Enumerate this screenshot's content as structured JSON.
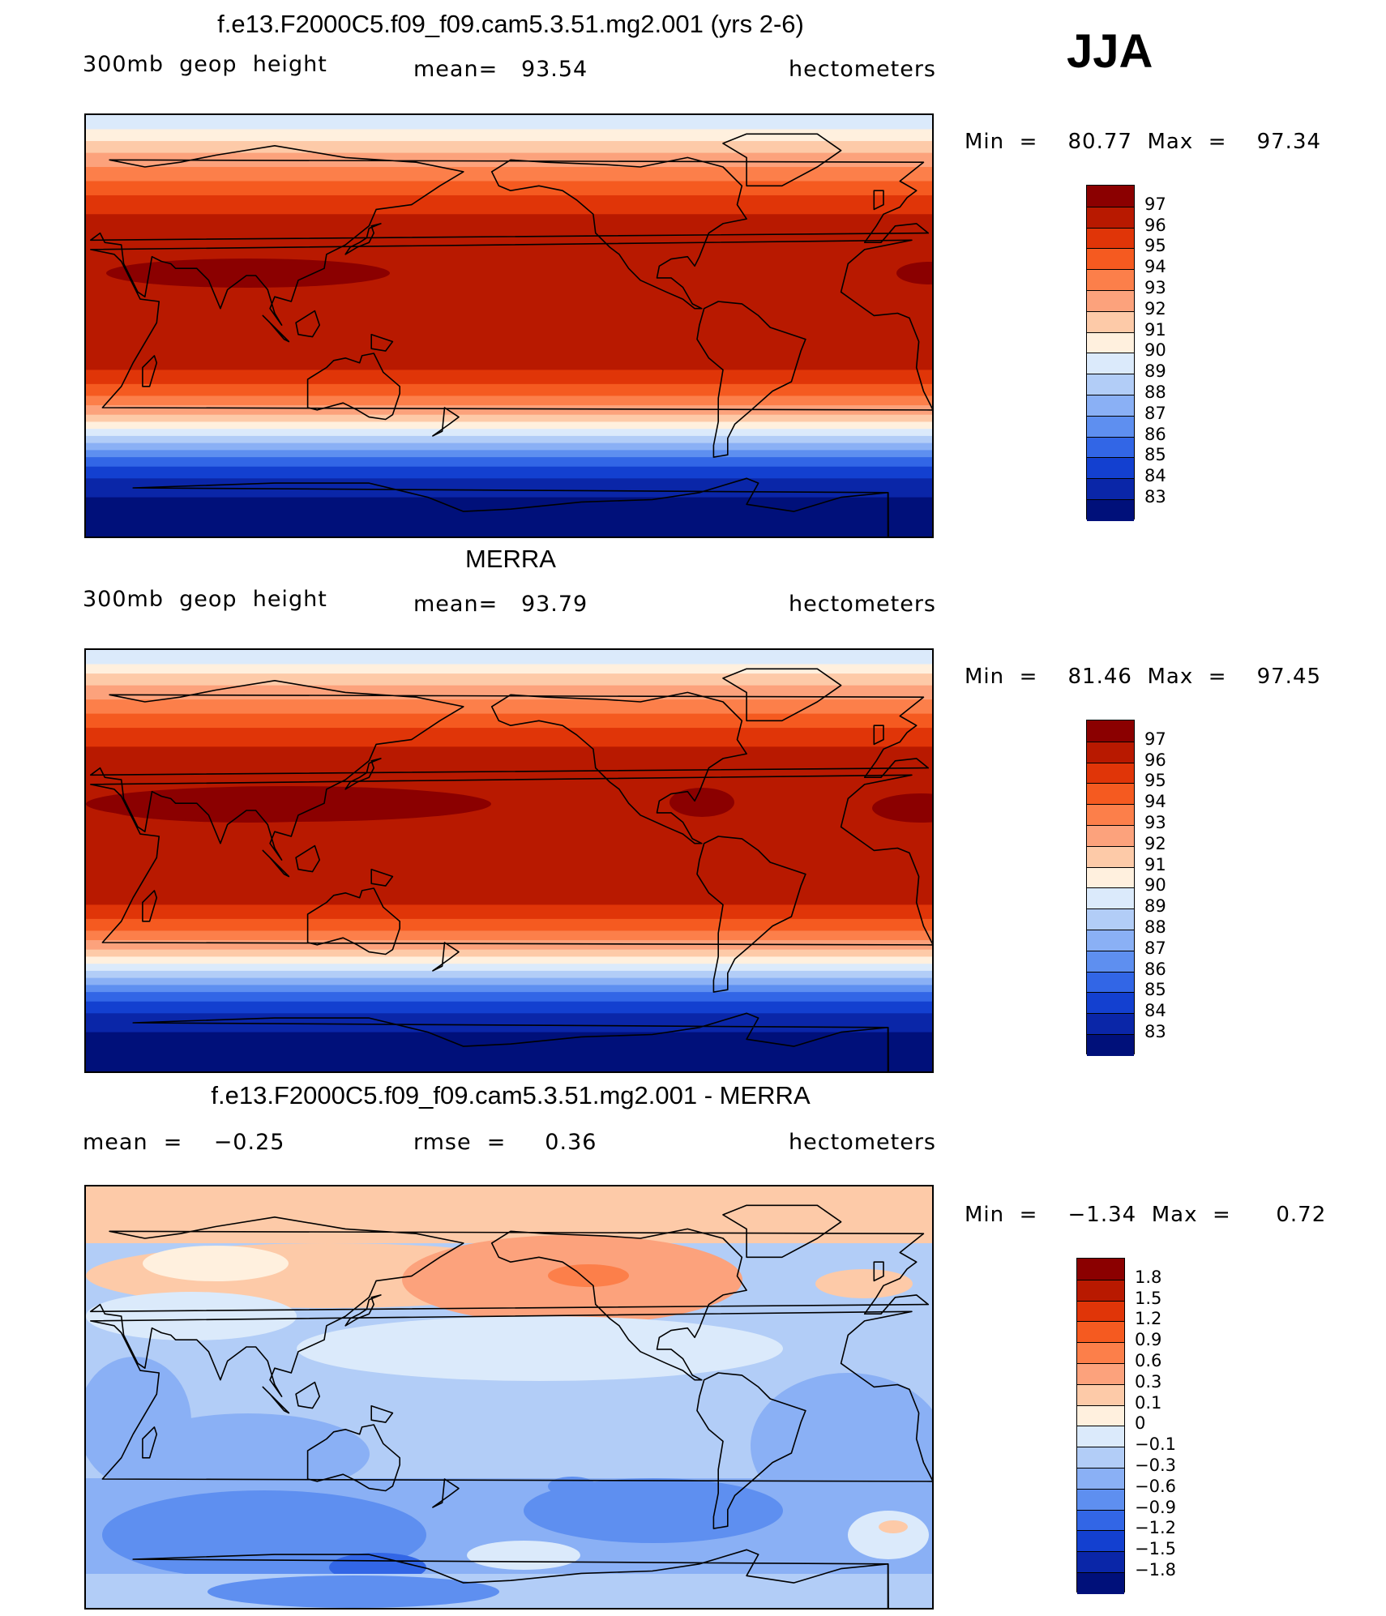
{
  "season": "JJA",
  "panels": [
    {
      "title": "f.e13.F2000C5.f09_f09.cam5.3.51.mg2.001 (yrs 2-6)",
      "left_label": "300mb  geop  height",
      "mid_label": "mean=   93.54",
      "right_label": "hectometers",
      "minmax": "Min  =    80.77  Max  =    97.34",
      "kind": "abs_model",
      "colorbar": {
        "levels": [
          "97",
          "96",
          "95",
          "94",
          "93",
          "92",
          "91",
          "90",
          "89",
          "88",
          "87",
          "86",
          "85",
          "84",
          "83"
        ],
        "colors": [
          "#8b0000",
          "#b81900",
          "#e03508",
          "#f55a20",
          "#fc7f4a",
          "#fca27c",
          "#fdcaa8",
          "#fff0de",
          "#dbeafb",
          "#b2cdf7",
          "#8ab0f5",
          "#5e8ff0",
          "#3266e6",
          "#1340d0",
          "#0a26a8",
          "#00107a"
        ]
      }
    },
    {
      "title": "MERRA",
      "left_label": "300mb  geop  height",
      "mid_label": "mean=   93.79",
      "right_label": "hectometers",
      "minmax": "Min  =    81.46  Max  =    97.45",
      "kind": "abs_obs",
      "colorbar": {
        "levels": [
          "97",
          "96",
          "95",
          "94",
          "93",
          "92",
          "91",
          "90",
          "89",
          "88",
          "87",
          "86",
          "85",
          "84",
          "83"
        ],
        "colors": [
          "#8b0000",
          "#b81900",
          "#e03508",
          "#f55a20",
          "#fc7f4a",
          "#fca27c",
          "#fdcaa8",
          "#fff0de",
          "#dbeafb",
          "#b2cdf7",
          "#8ab0f5",
          "#5e8ff0",
          "#3266e6",
          "#1340d0",
          "#0a26a8",
          "#00107a"
        ]
      }
    },
    {
      "title": "f.e13.F2000C5.f09_f09.cam5.3.51.mg2.001 - MERRA",
      "left_label": "mean  =    −0.25",
      "mid_label": "rmse  =     0.36",
      "right_label": "hectometers",
      "minmax": "Min  =    −1.34  Max  =      0.72",
      "kind": "diff",
      "colorbar": {
        "levels": [
          "1.8",
          "1.5",
          "1.2",
          "0.9",
          "0.6",
          "0.3",
          "0.1",
          "0",
          "−0.1",
          "−0.3",
          "−0.6",
          "−0.9",
          "−1.2",
          "−1.5",
          "−1.8"
        ],
        "colors": [
          "#8b0000",
          "#b81900",
          "#e03508",
          "#f55a20",
          "#fc7f4a",
          "#fca27c",
          "#fdcaa8",
          "#fff0de",
          "#dbeafb",
          "#b2cdf7",
          "#8ab0f5",
          "#5e8ff0",
          "#3266e6",
          "#1340d0",
          "#0a26a8",
          "#00107a"
        ]
      }
    }
  ]
}
